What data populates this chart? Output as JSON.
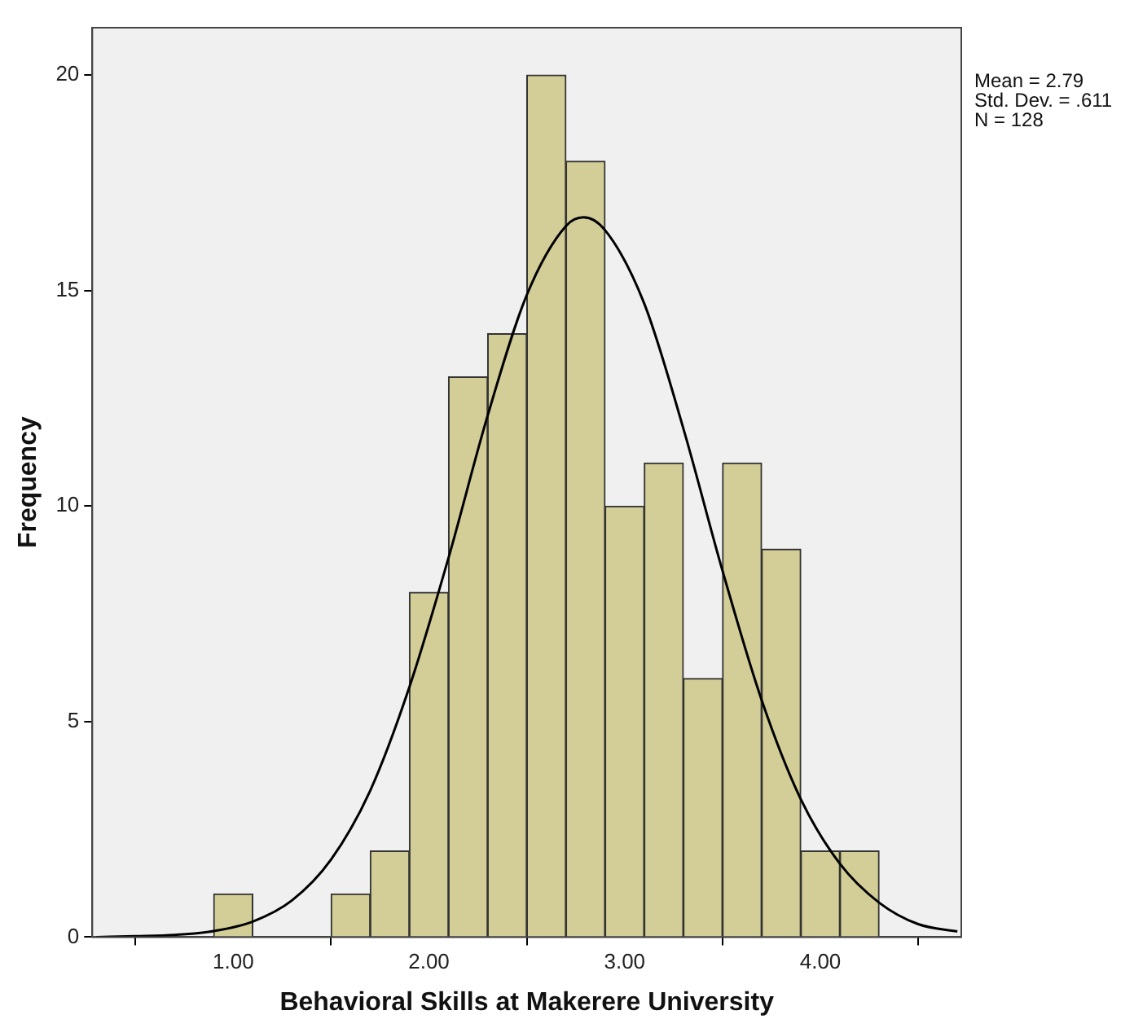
{
  "chart_data": {
    "type": "histogram",
    "xlabel": "Behavioral Skills at Makerere University",
    "ylabel": "Frequency",
    "bins": [
      0.9,
      1.1,
      1.3,
      1.5,
      1.7,
      1.9,
      2.1,
      2.3,
      2.5,
      2.7,
      2.9,
      3.1,
      3.3,
      3.5,
      3.7,
      3.9,
      4.1,
      4.3
    ],
    "values": [
      1,
      0,
      0,
      1,
      2,
      8,
      13,
      14,
      20,
      18,
      10,
      11,
      6,
      11,
      9,
      2,
      2
    ],
    "color": "#d3ce97",
    "series": [
      {
        "type": "line",
        "color": "#000000",
        "x": [
          0.3,
          0.5,
          0.7,
          0.9,
          1.1,
          1.3,
          1.5,
          1.7,
          1.9,
          2.1,
          2.3,
          2.5,
          2.7,
          2.79,
          2.9,
          3.1,
          3.3,
          3.5,
          3.7,
          3.9,
          4.1,
          4.3,
          4.5,
          4.7
        ],
        "values": [
          0.0,
          0.02,
          0.05,
          0.14,
          0.36,
          0.85,
          1.8,
          3.4,
          5.8,
          8.8,
          12.1,
          14.9,
          16.5,
          16.7,
          16.4,
          14.7,
          11.8,
          8.5,
          5.5,
          3.2,
          1.7,
          0.8,
          0.3,
          0.13
        ]
      }
    ],
    "xlim": [
      0.28,
      4.72
    ],
    "xticks": [
      {
        "value": 1,
        "label": "1.00"
      },
      {
        "value": 2,
        "label": "2.00"
      },
      {
        "value": 3,
        "label": "3.00"
      },
      {
        "value": 4,
        "label": "4.00"
      }
    ],
    "ylim": [
      0,
      21.1
    ],
    "yticks": [
      0,
      5,
      10,
      15,
      20
    ],
    "grid": false,
    "legend": false,
    "marker": "none",
    "line_style": "solid",
    "annotations": [
      "Mean = 2.79",
      "Std. Dev. = .611",
      "N = 128"
    ]
  }
}
